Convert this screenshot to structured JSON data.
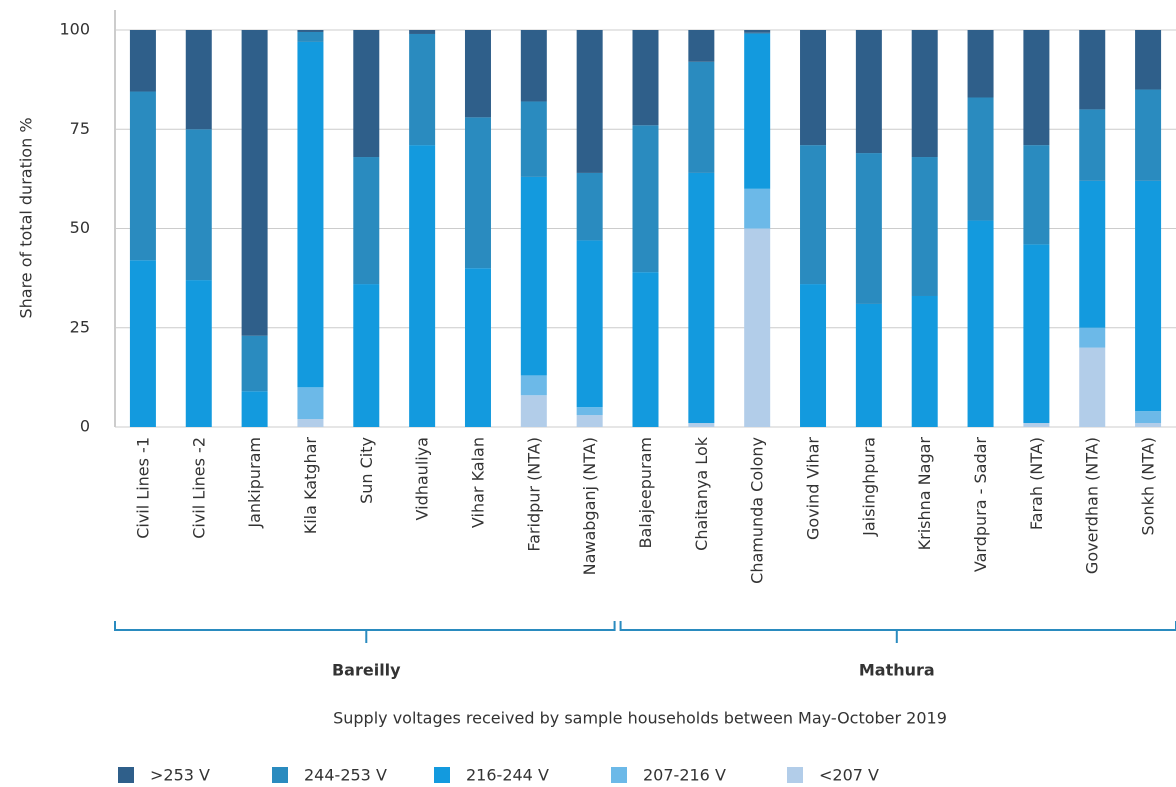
{
  "chart_data": {
    "type": "stacked_bar",
    "groups": [
      {
        "name": "Bareilly",
        "categories": [
          "Civil Lines -1",
          "Civil Lines -2",
          "Jankipuram",
          "Kila Katghar",
          "Sun City",
          "Vidhauliya",
          "Vihar Kalan",
          "Faridpur (NTA)",
          "Nawabganj (NTA)"
        ]
      },
      {
        "name": "Mathura",
        "categories": [
          "Balajeepuram",
          "Chaitanya Lok",
          "Chamunda Colony",
          "Govind Vihar",
          "Jaisinghpura",
          "Krishna Nagar",
          "Vardpura - Sadar",
          "Farah (NTA)",
          "Goverdhan (NTA)",
          "Sonkh (NTA)"
        ]
      }
    ],
    "x_label": "Supply voltages received by sample households between May-October 2019",
    "y_label": "Share of total duration %",
    "ylim": [
      0,
      100
    ],
    "yticks": [
      0,
      25,
      50,
      75,
      100
    ],
    "grid": true,
    "series": [
      {
        "name": "<207 V",
        "color": "#b2cde9",
        "values": [
          0,
          0,
          0,
          2,
          0,
          0,
          0,
          8,
          3,
          0,
          1,
          50,
          0,
          0,
          0,
          0,
          1,
          20,
          1
        ]
      },
      {
        "name": "207-216 V",
        "color": "#6cb9e8",
        "values": [
          0,
          0,
          0,
          8,
          0,
          0,
          0,
          5,
          2,
          0,
          0,
          10,
          0,
          0,
          0,
          0,
          0,
          5,
          3
        ]
      },
      {
        "name": "216-244 V",
        "color": "#139ade",
        "values": [
          42,
          37,
          9,
          87,
          36,
          71,
          40,
          50,
          42,
          39,
          63,
          39,
          36,
          31,
          33,
          52,
          45,
          37,
          58
        ]
      },
      {
        "name": "244-253 V",
        "color": "#2a8bbf",
        "values": [
          42.5,
          38,
          14,
          2.5,
          32,
          28,
          38,
          19,
          17,
          37,
          28,
          0.3,
          35,
          38,
          35,
          31,
          25,
          18,
          23
        ]
      },
      {
        "name": ">253 V",
        "color": "#2f5f8a",
        "values": [
          15.5,
          25,
          77,
          0.5,
          32,
          1,
          22,
          18,
          36,
          24,
          8,
          0.7,
          29,
          31,
          32,
          17,
          29,
          20,
          15
        ]
      }
    ],
    "legend_order": [
      4,
      3,
      2,
      1,
      0
    ]
  }
}
